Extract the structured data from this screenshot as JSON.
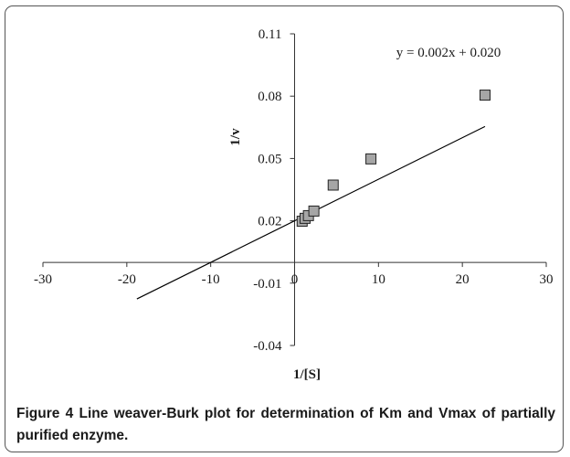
{
  "chart_data": {
    "type": "scatter",
    "xlabel": "1/[S]",
    "ylabel": "1/v",
    "xlim": [
      -30,
      30
    ],
    "ylim": [
      -0.04,
      0.11
    ],
    "x_ticks": [
      -30,
      -20,
      -10,
      0,
      10,
      20,
      30
    ],
    "y_ticks": [
      -0.04,
      -0.01,
      0.02,
      0.05,
      0.08,
      0.11
    ],
    "x_tick_labels": [
      "-30",
      "-20",
      "-10",
      "0",
      "10",
      "20",
      "30"
    ],
    "y_tick_labels": [
      "-0.04",
      "-0.01",
      "0.02",
      "0.05",
      "0.08",
      "0.11"
    ],
    "points": [
      {
        "x": 0.9,
        "y": 0.0198
      },
      {
        "x": 1.25,
        "y": 0.0212
      },
      {
        "x": 1.65,
        "y": 0.0225
      },
      {
        "x": 2.3,
        "y": 0.0247
      },
      {
        "x": 4.6,
        "y": 0.0372
      },
      {
        "x": 9.1,
        "y": 0.0498
      },
      {
        "x": 22.7,
        "y": 0.0805
      }
    ],
    "trendline": {
      "slope": 0.002,
      "intercept": 0.02,
      "x_start": -18.8,
      "x_end": 22.7
    },
    "equation": "y = 0.002x + 0.020",
    "grid": false,
    "marker_color": "#a6a6a6",
    "marker_edge_color": "#222222",
    "line_color": "#000000"
  },
  "caption": {
    "label": "Figure 4",
    "text": " Line weaver-Burk plot for determination of Km and Vmax of partially purified enzyme."
  }
}
